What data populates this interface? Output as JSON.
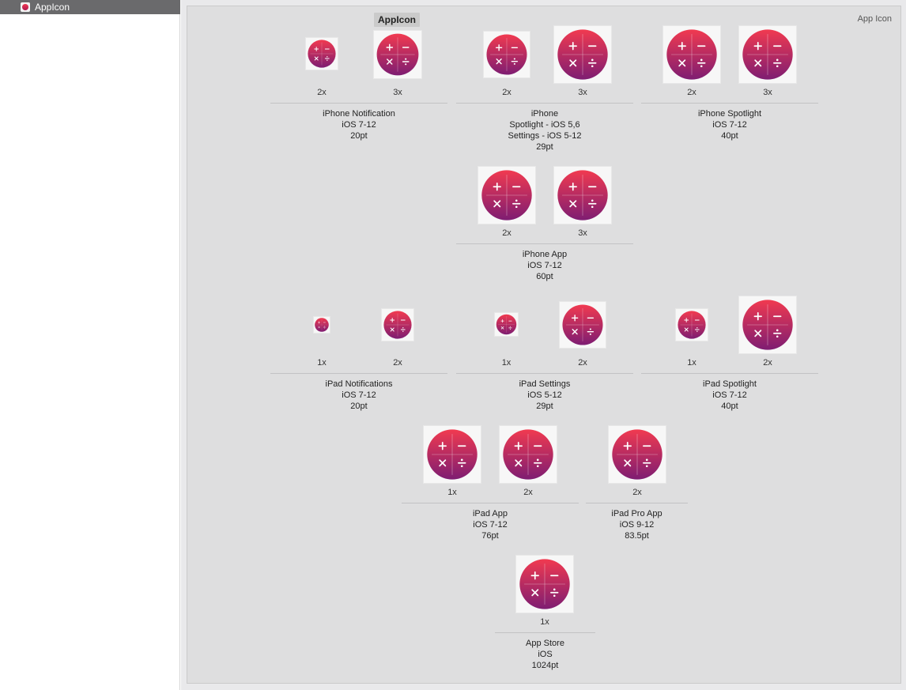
{
  "sidebar": {
    "items": [
      {
        "label": "AppIcon",
        "icon": "app-icon-thumbnail",
        "selected": true
      }
    ]
  },
  "main": {
    "set_name": "AppIcon",
    "set_type": "App Icon"
  },
  "theme": {
    "icon_gradient_top": "#f13a50",
    "icon_gradient_bottom": "#7e1d72",
    "icon_glyph_color": "#ffffff"
  },
  "groups": [
    {
      "id": "iphone-notification",
      "lines": [
        "iPhone Notification",
        "iOS 7-12",
        "20pt"
      ],
      "slots": [
        {
          "scale": "2x"
        },
        {
          "scale": "3x"
        }
      ]
    },
    {
      "id": "iphone-settings",
      "lines": [
        "iPhone",
        "Spotlight - iOS 5,6",
        "Settings - iOS 5-12",
        "29pt"
      ],
      "slots": [
        {
          "scale": "2x"
        },
        {
          "scale": "3x"
        }
      ]
    },
    {
      "id": "iphone-spotlight",
      "lines": [
        "iPhone Spotlight",
        "iOS 7-12",
        "40pt"
      ],
      "slots": [
        {
          "scale": "2x"
        },
        {
          "scale": "3x"
        }
      ]
    },
    {
      "id": "iphone-app",
      "lines": [
        "iPhone App",
        "iOS 7-12",
        "60pt"
      ],
      "slots": [
        {
          "scale": "2x"
        },
        {
          "scale": "3x"
        }
      ]
    },
    {
      "id": "ipad-notifications",
      "lines": [
        "iPad Notifications",
        "iOS 7-12",
        "20pt"
      ],
      "slots": [
        {
          "scale": "1x"
        },
        {
          "scale": "2x"
        }
      ]
    },
    {
      "id": "ipad-settings",
      "lines": [
        "iPad Settings",
        "iOS 5-12",
        "29pt"
      ],
      "slots": [
        {
          "scale": "1x"
        },
        {
          "scale": "2x"
        }
      ]
    },
    {
      "id": "ipad-spotlight",
      "lines": [
        "iPad Spotlight",
        "iOS 7-12",
        "40pt"
      ],
      "slots": [
        {
          "scale": "1x"
        },
        {
          "scale": "2x"
        }
      ]
    },
    {
      "id": "ipad-app",
      "lines": [
        "iPad App",
        "iOS 7-12",
        "76pt"
      ],
      "slots": [
        {
          "scale": "1x"
        },
        {
          "scale": "2x"
        }
      ]
    },
    {
      "id": "ipad-pro-app",
      "lines": [
        "iPad Pro App",
        "iOS 9-12",
        "83.5pt"
      ],
      "slots": [
        {
          "scale": "2x"
        }
      ]
    },
    {
      "id": "app-store",
      "lines": [
        "App Store",
        "iOS",
        "1024pt"
      ],
      "slots": [
        {
          "scale": "1x"
        }
      ]
    }
  ]
}
